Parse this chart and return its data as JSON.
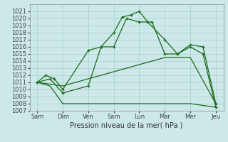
{
  "xlabel": "Pression niveau de la mer( hPa )",
  "background_color": "#cce8e8",
  "grid_color": "#aacfcf",
  "line_color": "#1a6b1a",
  "ylim": [
    1007,
    1022
  ],
  "yticks": [
    1007,
    1008,
    1009,
    1010,
    1011,
    1012,
    1013,
    1014,
    1015,
    1016,
    1017,
    1018,
    1019,
    1020,
    1021
  ],
  "x_labels": [
    "Sam",
    "Dim",
    "Ven",
    "Sam",
    "Lun",
    "Mar",
    "Mer",
    "Jeu"
  ],
  "x_positions": [
    0,
    1,
    2,
    3,
    4,
    5,
    6,
    7
  ],
  "line1_x": [
    0,
    0.33,
    0.67,
    1,
    2,
    2.5,
    3,
    3.33,
    3.67,
    4,
    4.33,
    5,
    5.5,
    6,
    6.5,
    7
  ],
  "line1_y": [
    1011,
    1012,
    1011.5,
    1010,
    1015.5,
    1016,
    1018,
    1020.2,
    1020.5,
    1021.0,
    1019.5,
    1017,
    1015,
    1016.3,
    1016,
    1008
  ],
  "line2_x": [
    0,
    0.5,
    1,
    2,
    2.5,
    3,
    3.5,
    4,
    4.5,
    5,
    5.5,
    6,
    6.5,
    7
  ],
  "line2_y": [
    1011,
    1011.5,
    1009.5,
    1010.5,
    1016,
    1016,
    1020,
    1019.5,
    1019.5,
    1015,
    1015,
    1016,
    1015,
    1007.5
  ],
  "line3_x": [
    0,
    1,
    2,
    3,
    4,
    5,
    6,
    7
  ],
  "line3_y": [
    1011,
    1010.5,
    1011.5,
    1012.5,
    1013.5,
    1014.5,
    1014.5,
    1008
  ],
  "line4_x": [
    0,
    0.5,
    1,
    2,
    3,
    4,
    5,
    6,
    7
  ],
  "line4_y": [
    1011,
    1010.5,
    1008,
    1008,
    1008,
    1008,
    1008,
    1008,
    1007.5
  ]
}
